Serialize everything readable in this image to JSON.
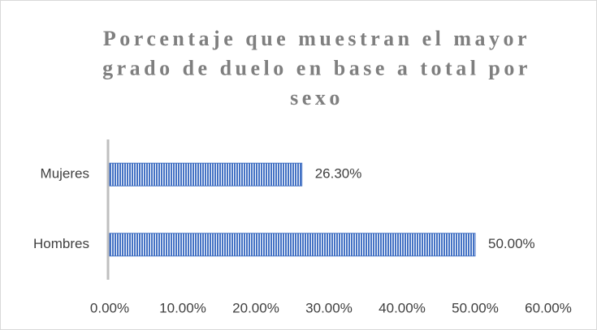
{
  "chart_data": {
    "type": "bar",
    "orientation": "horizontal",
    "title": "Porcentaje que muestran el mayor grado de duelo en base a total por sexo",
    "categories": [
      "Mujeres",
      "Hombres"
    ],
    "values": [
      26.3,
      50
    ],
    "value_labels": [
      "26.30%",
      "50.00%"
    ],
    "color": "#4472c4",
    "xlim": [
      0,
      60
    ],
    "xticks": [
      {
        "value": 0,
        "label": "0.00%"
      },
      {
        "value": 10,
        "label": "10.00%"
      },
      {
        "value": 20,
        "label": "20.00%"
      },
      {
        "value": 30,
        "label": "30.00%"
      },
      {
        "value": 40,
        "label": "40.00%"
      },
      {
        "value": 50,
        "label": "50.00%"
      },
      {
        "value": 60,
        "label": "60.00%"
      }
    ],
    "grid": false
  }
}
